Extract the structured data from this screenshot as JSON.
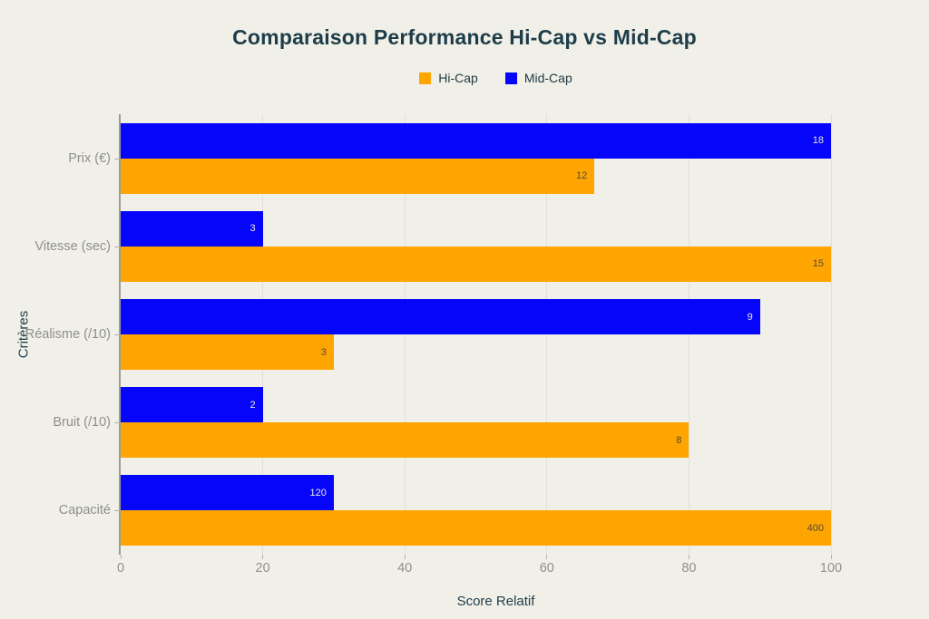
{
  "colors": {
    "background": "#F0F0E9",
    "grid": "#DFDFD7",
    "axis_line": "#9C9C96",
    "tick_label": "#90908A",
    "heading": "#1E3D49",
    "hicap_orange": "#FFA502",
    "midcap_blue": "#0505FA"
  },
  "chart_data": {
    "type": "bar",
    "orientation": "horizontal",
    "title": "Comparaison Performance Hi-Cap vs Mid-Cap",
    "xlabel": "Score Relatif",
    "ylabel": "Critères",
    "xlim": [
      0,
      100
    ],
    "xticks": [
      0,
      20,
      40,
      60,
      80,
      100
    ],
    "grid": true,
    "legend_position": "top-center",
    "categories": [
      "Prix (€)",
      "Vitesse (sec)",
      "Réalisme (/10)",
      "Bruit (/10)",
      "Capacité"
    ],
    "series": [
      {
        "name": "Hi-Cap",
        "color": "#FFA502",
        "row": "lower",
        "relative_values": [
          66.7,
          100,
          30,
          80,
          100
        ],
        "values": [
          12,
          15,
          3,
          8,
          400
        ],
        "value_labels": [
          "12",
          "15",
          "3",
          "8",
          "400"
        ],
        "label_color": "#4E4B40"
      },
      {
        "name": "Mid-Cap",
        "color": "#0505FA",
        "row": "upper",
        "relative_values": [
          100,
          20,
          90,
          20,
          30
        ],
        "values": [
          18,
          3,
          9,
          2,
          120
        ],
        "value_labels": [
          "18",
          "3",
          "9",
          "2",
          "120"
        ],
        "label_color": "#E9E9E9"
      }
    ]
  }
}
